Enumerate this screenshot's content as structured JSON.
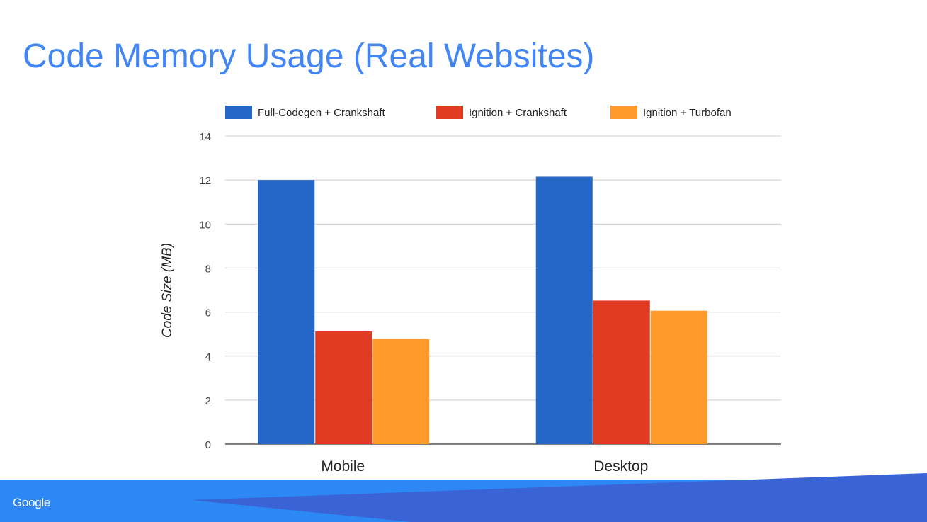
{
  "slide": {
    "title": "Code Memory Usage (Real Websites)",
    "brand": "Google"
  },
  "colors": {
    "title": "#4285f4",
    "footer_light": "#2d87f5",
    "footer_dark": "#3a63d6"
  },
  "chart_data": {
    "type": "bar",
    "categories": [
      "Mobile",
      "Desktop"
    ],
    "series": [
      {
        "name": "Full-Codegen + Crankshaft",
        "color": "#2467c8",
        "values": [
          12.0,
          12.15
        ]
      },
      {
        "name": "Ignition + Crankshaft",
        "color": "#e03a22",
        "values": [
          5.12,
          6.52
        ]
      },
      {
        "name": "Ignition + Turbofan",
        "color": "#ff9a2b",
        "values": [
          4.78,
          6.06
        ]
      }
    ],
    "title": "",
    "xlabel": "",
    "ylabel": "Code Size (MB)",
    "ylim": [
      0,
      14
    ],
    "yticks": [
      0,
      2,
      4,
      6,
      8,
      10,
      12,
      14
    ],
    "grid": true,
    "legend_position": "top"
  }
}
